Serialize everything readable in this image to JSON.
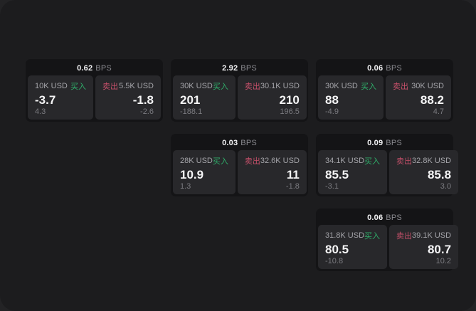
{
  "window": {
    "outer_bg": "#232325",
    "bg": "#1c1c1e"
  },
  "labels": {
    "bps": "BPS",
    "buy": "买入",
    "sell": "卖出"
  },
  "colors": {
    "buy_green": "#2fae6a",
    "sell_red": "#c5506a",
    "card_bg": "#141416",
    "panel_bg": "#28282b"
  },
  "cards": [
    {
      "row": 1,
      "col": 1,
      "bps": "0.62",
      "buy": {
        "amount": "10K USD",
        "price": "-3.7",
        "delta": "4.3"
      },
      "sell": {
        "amount": "5.5K USD",
        "price": "-1.8",
        "delta": "-2.6"
      }
    },
    {
      "row": 1,
      "col": 2,
      "bps": "2.92",
      "buy": {
        "amount": "30K USD",
        "price": "201",
        "delta": "-188.1"
      },
      "sell": {
        "amount": "30.1K USD",
        "price": "210",
        "delta": "196.5"
      }
    },
    {
      "row": 1,
      "col": 3,
      "bps": "0.06",
      "buy": {
        "amount": "30K USD",
        "price": "88",
        "delta": "-4.9"
      },
      "sell": {
        "amount": "30K USD",
        "price": "88.2",
        "delta": "4.7"
      }
    },
    {
      "row": 2,
      "col": 2,
      "bps": "0.03",
      "buy": {
        "amount": "28K USD",
        "price": "10.9",
        "delta": "1.3"
      },
      "sell": {
        "amount": "32.6K USD",
        "price": "11",
        "delta": "-1.8"
      }
    },
    {
      "row": 2,
      "col": 3,
      "bps": "0.09",
      "buy": {
        "amount": "34.1K USD",
        "price": "85.5",
        "delta": "-3.1"
      },
      "sell": {
        "amount": "32.8K USD",
        "price": "85.8",
        "delta": "3.0"
      }
    },
    {
      "row": 3,
      "col": 3,
      "bps": "0.06",
      "buy": {
        "amount": "31.8K USD",
        "price": "80.5",
        "delta": "-10.8"
      },
      "sell": {
        "amount": "39.1K USD",
        "price": "80.7",
        "delta": "10.2"
      }
    }
  ]
}
